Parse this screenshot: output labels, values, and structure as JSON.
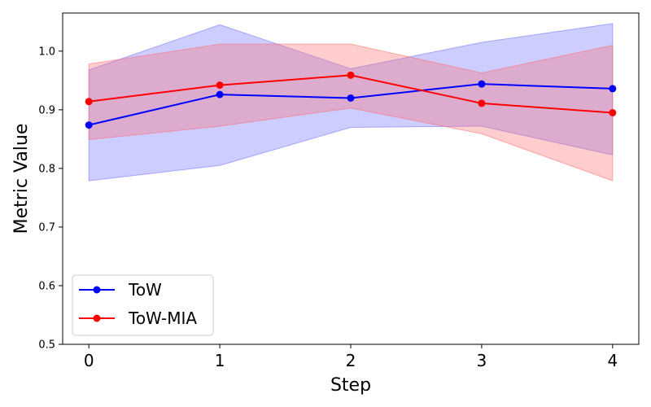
{
  "chart_data": {
    "type": "line",
    "title": "",
    "xlabel": "Step",
    "ylabel": "Metric Value",
    "x": [
      0,
      1,
      2,
      3,
      4
    ],
    "xlim": [
      -0.2,
      4.2
    ],
    "ylim": [
      0.5,
      1.065
    ],
    "yticks": [
      0.5,
      0.6,
      0.7,
      0.8,
      0.9,
      1.0
    ],
    "ytick_labels": [
      "0.5",
      "0.6",
      "0.7",
      "0.8",
      "0.9",
      "1.0"
    ],
    "xtick_labels": [
      "0",
      "1",
      "2",
      "3",
      "4"
    ],
    "grid": false,
    "legend_position": "lower-left",
    "series": [
      {
        "name": "ToW",
        "color": "#0000ff",
        "band_color": "#6666ff",
        "values": [
          0.874,
          0.926,
          0.92,
          0.944,
          0.936
        ],
        "lower": [
          0.779,
          0.805,
          0.87,
          0.872,
          0.823
        ],
        "upper": [
          0.968,
          1.045,
          0.97,
          1.015,
          1.047
        ]
      },
      {
        "name": "ToW-MIA",
        "color": "#ff0000",
        "band_color": "#ff6666",
        "values": [
          0.914,
          0.942,
          0.959,
          0.911,
          0.895
        ],
        "lower": [
          0.849,
          0.872,
          0.903,
          0.859,
          0.779
        ],
        "upper": [
          0.978,
          1.012,
          1.012,
          0.963,
          1.01
        ]
      }
    ]
  }
}
